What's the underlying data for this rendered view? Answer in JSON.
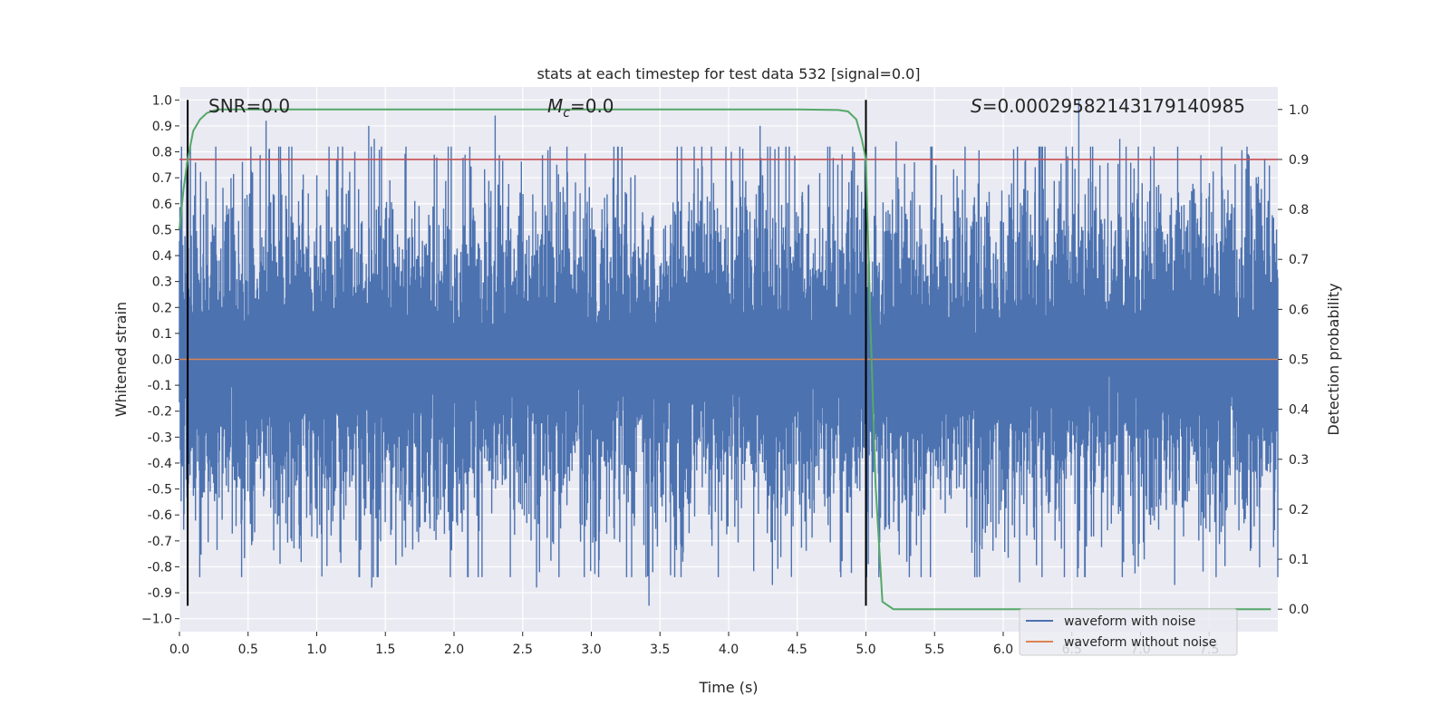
{
  "chart_data": {
    "type": "line",
    "title": "stats at each timestep for test data 532 [signal=0.0]",
    "xlabel": "Time (s)",
    "ylabel": "Whitened strain",
    "y2label": "Detection probability",
    "xlim": [
      0,
      8
    ],
    "ylim": [
      -1.05,
      1.05
    ],
    "y2lim": [
      -0.045,
      1.045
    ],
    "x_ticks": [
      0.0,
      0.5,
      1.0,
      1.5,
      2.0,
      2.5,
      3.0,
      3.5,
      4.0,
      4.5,
      5.0,
      5.5,
      6.0,
      6.5,
      7.0,
      7.5
    ],
    "x_tick_labels": [
      "0.0",
      "0.5",
      "1.0",
      "1.5",
      "2.0",
      "2.5",
      "3.0",
      "3.5",
      "4.0",
      "4.5",
      "5.0",
      "5.5",
      "6.0",
      "6.5",
      "7.0",
      "7.5"
    ],
    "y_ticks": [
      1.0,
      0.9,
      0.8,
      0.7,
      0.6,
      0.5,
      0.4,
      0.3,
      0.2,
      0.1,
      0.0,
      -0.1,
      -0.2,
      -0.3,
      -0.4,
      -0.5,
      -0.6,
      -0.7,
      -0.8,
      -0.9,
      -1.0
    ],
    "y_tick_labels": [
      "1.0",
      "0.9",
      "0.8",
      "0.7",
      "0.6",
      "0.5",
      "0.4",
      "0.3",
      "0.2",
      "0.1",
      "0.0",
      "-0.1",
      "-0.2",
      "-0.3",
      "-0.4",
      "-0.5",
      "-0.6",
      "-0.7",
      "-0.8",
      "-0.9",
      "−1.0"
    ],
    "y2_ticks": [
      1.0,
      0.9,
      0.8,
      0.7,
      0.6,
      0.5,
      0.4,
      0.3,
      0.2,
      0.1,
      0.0
    ],
    "y2_tick_labels": [
      "1.0",
      "0.9",
      "0.8",
      "0.7",
      "0.6",
      "0.5",
      "0.4",
      "0.3",
      "0.2",
      "0.1",
      "0.0"
    ],
    "grid": true,
    "legend_position": "bottom-right",
    "annotations": {
      "snr": "SNR=0.0",
      "mc_symbol": "M",
      "mc_sub": "c",
      "mc_value": "=0.0",
      "s_symbol": "S",
      "s_value": "=0.00029582143179140985"
    },
    "vlines_x": [
      0.06,
      5.0
    ],
    "vlines_yrange": [
      -0.95,
      1.0
    ],
    "threshold_probability": 0.9,
    "series": [
      {
        "name": "waveform with noise",
        "color": "#4c72b0",
        "axis": "left",
        "noise_sigma": 0.2,
        "noise_peak_positive": [
          [
            0.63,
            0.92
          ],
          [
            1.38,
            0.9
          ],
          [
            1.42,
            0.85
          ],
          [
            2.3,
            0.94
          ],
          [
            4.23,
            0.9
          ],
          [
            5.22,
            0.84
          ],
          [
            6.55,
            1.0
          ],
          [
            6.85,
            0.85
          ]
        ],
        "noise_peak_negative": [
          [
            1.4,
            -0.88
          ],
          [
            2.6,
            -0.88
          ],
          [
            3.42,
            -0.95
          ],
          [
            4.32,
            -0.87
          ],
          [
            6.12,
            -0.86
          ],
          [
            7.25,
            -0.87
          ]
        ]
      },
      {
        "name": "waveform without noise",
        "color": "#dd8452",
        "axis": "left",
        "x": [
          0.0,
          8.0
        ],
        "y": [
          0.0,
          0.0
        ]
      },
      {
        "name": "detection probability",
        "color": "#55a868",
        "axis": "right",
        "x": [
          0.0,
          0.03,
          0.06,
          0.1,
          0.15,
          0.2,
          0.25,
          0.3,
          0.35,
          0.4,
          0.5,
          1.0,
          2.0,
          3.0,
          4.0,
          4.5,
          4.8,
          4.87,
          4.93,
          4.97,
          5.0,
          5.03,
          5.07,
          5.12,
          5.2,
          6.0,
          7.0,
          7.95
        ],
        "y": [
          0.76,
          0.84,
          0.9,
          0.957,
          0.98,
          0.993,
          0.998,
          1.0,
          1.0,
          1.0,
          1.0,
          1.0,
          1.0,
          1.0,
          1.0,
          1.0,
          0.999,
          0.996,
          0.98,
          0.94,
          0.9,
          0.6,
          0.25,
          0.015,
          0.0,
          0.0,
          0.0,
          0.0
        ]
      }
    ],
    "colors": {
      "threshold": "#c44e52",
      "vline": "#000000",
      "axes_bg": "#eaeaf2",
      "grid": "#ffffff"
    }
  }
}
